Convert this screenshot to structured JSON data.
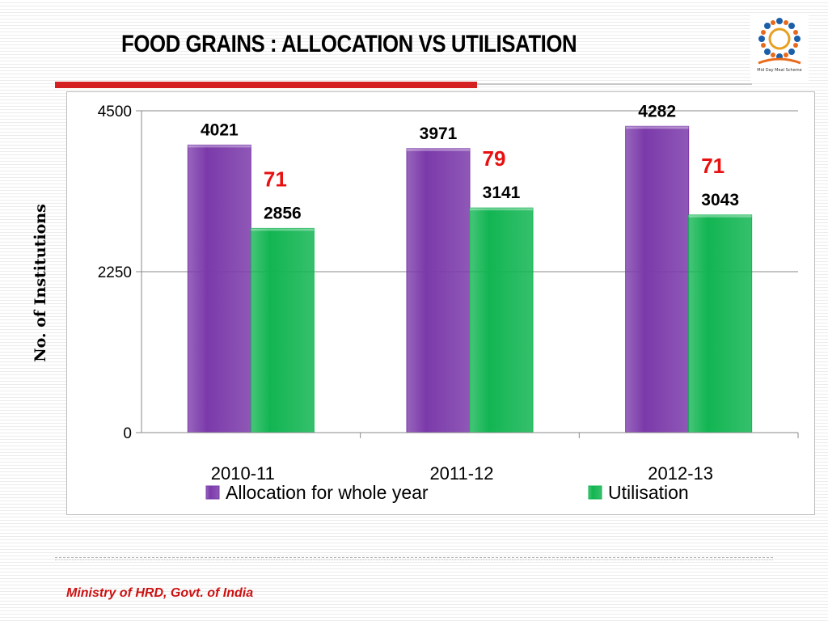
{
  "slide": {
    "title": "FOOD GRAINS : ALLOCATION VS UTILISATION",
    "footer": "Ministry of HRD, Govt. of India",
    "logo_text": "Mid Day Meal Scheme"
  },
  "colors": {
    "allocation": "#7b3aaa",
    "utilisation": "#12b552",
    "gap_label": "#e81010",
    "title_rule": "#d42020"
  },
  "chart_data": {
    "type": "bar",
    "categories": [
      "2010-11",
      "2011-12",
      "2012-13"
    ],
    "series": [
      {
        "name": "Allocation for whole year",
        "values": [
          4021,
          3971,
          4282
        ],
        "color": "#7b3aaa"
      },
      {
        "name": "Utilisation",
        "values": [
          2856,
          3141,
          3043
        ],
        "color": "#12b552"
      }
    ],
    "annotations": [
      "71",
      "79",
      "71"
    ],
    "ylabel": "No. of Institutions",
    "ylim": [
      0,
      4500
    ],
    "yticks": [
      0,
      2250,
      4500
    ],
    "grid": true,
    "legend": "bottom"
  }
}
